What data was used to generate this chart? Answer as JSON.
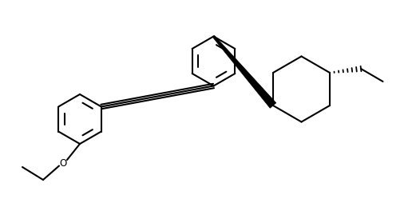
{
  "bg_color": "#ffffff",
  "line_color": "#000000",
  "lw": 1.5,
  "figsize": [
    5.26,
    2.54
  ],
  "dpi": 100,
  "xlim": [
    0,
    10.52
  ],
  "ylim": [
    0,
    5.08
  ]
}
